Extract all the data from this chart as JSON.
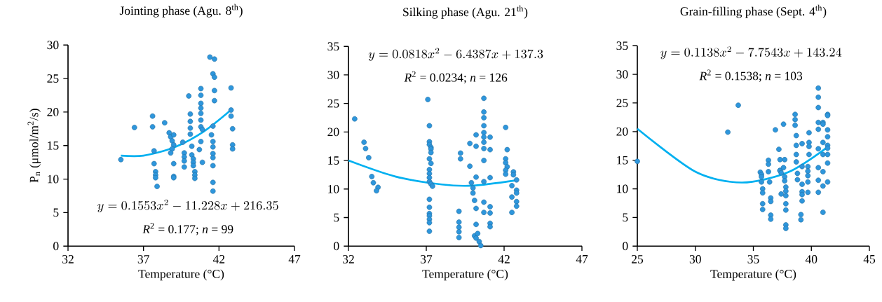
{
  "chart_data": [
    {
      "type": "scatter",
      "title": "Jointing phase (Agu. 8$^{th}$)",
      "xlabel": "Temperature (°C)",
      "ylabel": "P$_{n}$ (μmol/m$^{2}$/s)",
      "xlim": [
        32,
        47
      ],
      "ylim": [
        0,
        30
      ],
      "xticks": [
        32,
        37,
        42,
        47
      ],
      "yticks": [
        0,
        5,
        10,
        15,
        20,
        25,
        30
      ],
      "annotations": [
        "y = 0.1553x^{2} - 11.228x + 216.35",
        "*R*$^{2}$ = 0.177; *n* = 99"
      ],
      "series": [
        {
          "marker": "circle",
          "color": "#2e96dc",
          "x": [
            35.5,
            36.4,
            37.6,
            37.6,
            38.4,
            37.7,
            37.7,
            37.8,
            37.8,
            37.8,
            37.9,
            38.7,
            38.8,
            38.9,
            39.0,
            38.9,
            38.8,
            39.0,
            39.0,
            39.0,
            39.0,
            39.6,
            39.7,
            39.7,
            39.7,
            39.7,
            40.0,
            40.1,
            40.1,
            40.1,
            40.1,
            40.2,
            40.2,
            40.3,
            40.3,
            40.3,
            40.4,
            40.4,
            40.4,
            40.8,
            40.8,
            40.8,
            40.8,
            40.8,
            40.8,
            40.8,
            40.9,
            40.8,
            40.7,
            40.9,
            41.4,
            41.7,
            41.6,
            41.7,
            41.7,
            41.7,
            41.6,
            41.5,
            41.6,
            41.6,
            41.6,
            41.6,
            41.6,
            41.6,
            41.6,
            42.8,
            42.8,
            42.8,
            42.9,
            42.9,
            42.9
          ],
          "values": [
            12.9,
            17.7,
            19.4,
            17.8,
            18.4,
            14.2,
            12.3,
            11.1,
            10.6,
            10.2,
            8.9,
            16.9,
            16.3,
            15.7,
            15.1,
            14.5,
            13.9,
            12.3,
            10.4,
            10.2,
            16.6,
            15.5,
            13.9,
            13.3,
            12.7,
            11.8,
            22.4,
            19.7,
            18.6,
            17.6,
            16.7,
            14.9,
            13.6,
            13.0,
            12.5,
            12.0,
            11.1,
            10.6,
            10.1,
            23.5,
            22.5,
            21.3,
            20.6,
            19.8,
            18.8,
            17.8,
            17.4,
            15.6,
            14.4,
            12.5,
            28.2,
            27.9,
            25.7,
            25.2,
            23.2,
            21.7,
            17.9,
            16.6,
            15.6,
            14.8,
            13.8,
            13.2,
            12.0,
            9.5,
            8.2,
            23.6,
            20.3,
            19.4,
            17.5,
            15.1,
            14.5
          ]
        },
        {
          "type": "line",
          "marker": "none",
          "color": "#00b0f0",
          "x": [
            35.5,
            37,
            39,
            41,
            42.9
          ],
          "values": [
            13.5,
            13.5,
            14.7,
            17.1,
            20.5
          ]
        }
      ]
    },
    {
      "type": "scatter",
      "title": "Silking phase (Agu. 21$^{th}$)",
      "xlabel": "Temperature (°C)",
      "xlim": [
        32,
        47
      ],
      "ylim": [
        0,
        35
      ],
      "xticks": [
        32,
        37,
        42,
        47
      ],
      "yticks": [
        0,
        5,
        10,
        15,
        20,
        25,
        30,
        35
      ],
      "annotations": [
        "y = 0.0818x^{2} - 6.4387x + 137.3",
        "*R*$^{2}$ = 0.0234; *n* = 126"
      ],
      "series": [
        {
          "marker": "circle",
          "color": "#2e96dc",
          "x": [
            32.4,
            33.0,
            33.1,
            33.3,
            33.5,
            33.6,
            33.9,
            33.8,
            37.1,
            37.2,
            37.2,
            37.2,
            37.3,
            37.3,
            37.3,
            37.2,
            37.3,
            37.2,
            37.2,
            37.2,
            37.2,
            37.3,
            37.4,
            37.2,
            37.2,
            37.2,
            37.2,
            37.2,
            37.2,
            37.2,
            39.2,
            39.2,
            39.1,
            39.1,
            39.1,
            39.1,
            39.1,
            39.8,
            40.2,
            40.2,
            39.8,
            40.2,
            39.9,
            40.0,
            40.0,
            40.1,
            40.2,
            40.2,
            40.1,
            40.2,
            40.3,
            40.4,
            40.5,
            40.7,
            40.7,
            40.7,
            40.7,
            40.7,
            40.7,
            40.7,
            40.7,
            40.7,
            40.7,
            41.1,
            41.1,
            41.1,
            40.7,
            40.7,
            41.1,
            41.1,
            41.1,
            41.1,
            42.1,
            42.2,
            42.1,
            42.1,
            42.2,
            42.1,
            42.1,
            42.6,
            42.6,
            42.8,
            42.5,
            42.8,
            42.8,
            42.5,
            42.8,
            42.8,
            42.5
          ],
          "values": [
            22.3,
            18.2,
            17.1,
            15.5,
            12.2,
            11.1,
            10.3,
            9.7,
            25.7,
            21.1,
            18.3,
            17.8,
            17.3,
            17.0,
            16.4,
            15.3,
            14.5,
            13.4,
            12.7,
            12.0,
            11.3,
            10.9,
            10.5,
            8.2,
            6.8,
            5.7,
            5.3,
            4.7,
            4.1,
            2.6,
            16.3,
            15.3,
            6.1,
            4.2,
            3.3,
            2.5,
            1.5,
            18.0,
            19.5,
            17.5,
            14.0,
            12.1,
            11.1,
            10.2,
            9.3,
            8.0,
            6.6,
            3.8,
            1.8,
            1.4,
            2.2,
            0.8,
            0.1,
            25.9,
            23.5,
            22.5,
            21.1,
            19.9,
            19.1,
            18.2,
            17.1,
            15.0,
            11.3,
            19.1,
            16.9,
            12.0,
            7.7,
            5.9,
            6.9,
            5.8,
            4.0,
            3.4,
            20.8,
            16.9,
            15.3,
            14.6,
            13.9,
            13.3,
            12.6,
            13.0,
            12.5,
            11.6,
            10.6,
            9.8,
            9.3,
            8.6,
            7.8,
            7.0,
            5.9
          ]
        },
        {
          "type": "line",
          "marker": "none",
          "color": "#00b0f0",
          "x": [
            32,
            35,
            38,
            40,
            42.7
          ],
          "values": [
            15.0,
            12.2,
            10.8,
            10.6,
            11.5
          ]
        }
      ]
    },
    {
      "type": "scatter",
      "title": "Grain-filling phase (Sept. 4$^{th}$)",
      "xlabel": "Temperature (°C)",
      "xlim": [
        25,
        45
      ],
      "ylim": [
        0,
        35
      ],
      "xticks": [
        25,
        30,
        35,
        40,
        45
      ],
      "yticks": [
        0,
        5,
        10,
        15,
        20,
        25,
        30,
        35
      ],
      "annotations": [
        "y = 0.1138x^{2} - 7.7543x + 143.24",
        "*R*$^{2}$ = 0.1538; *n* = 103"
      ],
      "series": [
        {
          "marker": "circle",
          "color": "#2e96dc",
          "x": [
            25.0,
            32.8,
            33.7,
            35.6,
            35.7,
            35.7,
            35.7,
            35.8,
            35.8,
            35.8,
            35.8,
            36.3,
            36.3,
            36.3,
            36.4,
            36.5,
            36.5,
            36.5,
            36.5,
            36.9,
            37.6,
            37.2,
            37.3,
            37.3,
            37.7,
            37.3,
            37.4,
            37.6,
            37.7,
            37.7,
            37.8,
            37.8,
            37.8,
            37.4,
            37.8,
            37.8,
            37.8,
            37.8,
            38.6,
            38.6,
            38.6,
            38.7,
            38.7,
            38.7,
            38.7,
            38.8,
            38.8,
            39.2,
            39.2,
            39.2,
            39.2,
            39.2,
            39.2,
            39.1,
            39.1,
            39.8,
            39.8,
            39.8,
            39.8,
            39.7,
            39.7,
            39.7,
            39.7,
            39.7,
            40.6,
            40.6,
            40.6,
            40.6,
            40.6,
            40.6,
            40.6,
            40.6,
            40.6,
            41.0,
            41.0,
            41.0,
            41.0,
            41.0,
            41.0,
            41.0,
            41.4,
            41.4,
            41.4,
            41.4,
            41.4,
            41.4,
            41.4,
            41.4,
            41.4
          ],
          "values": [
            14.8,
            19.9,
            24.6,
            12.9,
            12.5,
            12.1,
            11.2,
            10.0,
            9.3,
            7.4,
            6.4,
            15.0,
            14.3,
            13.0,
            11.2,
            8.4,
            7.8,
            5.4,
            4.7,
            20.3,
            21.3,
            16.9,
            15.1,
            13.2,
            15.1,
            13.2,
            12.8,
            13.7,
            12.1,
            11.4,
            10.3,
            9.6,
            8.8,
            9.1,
            7.4,
            6.3,
            3.7,
            3.1,
            23.0,
            22.1,
            21.1,
            19.3,
            17.6,
            16.0,
            14.7,
            12.7,
            11.6,
            17.9,
            13.9,
            10.8,
            9.5,
            9.0,
            7.9,
            5.5,
            4.6,
            19.8,
            18.1,
            17.4,
            16.0,
            13.9,
            13.1,
            12.3,
            11.2,
            9.4,
            27.6,
            26.0,
            24.2,
            21.6,
            20.4,
            17.0,
            13.7,
            11.5,
            9.4,
            21.6,
            21.3,
            18.1,
            16.0,
            13.0,
            10.5,
            5.9,
            23.0,
            22.8,
            20.3,
            19.1,
            17.6,
            17.1,
            16.0,
            14.5,
            11.2
          ]
        },
        {
          "type": "line",
          "marker": "none",
          "color": "#00b0f0",
          "x": [
            25,
            30,
            34,
            38,
            41.4
          ],
          "values": [
            20.5,
            13.0,
            11.1,
            12.9,
            17.3
          ]
        }
      ]
    }
  ]
}
